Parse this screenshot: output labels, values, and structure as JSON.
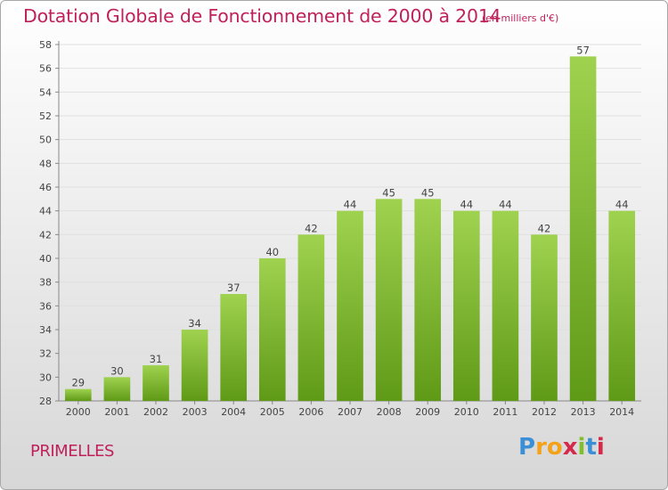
{
  "chart_data": {
    "type": "bar",
    "title": "Dotation Globale de Fonctionnement de 2000 à 2014",
    "unit_note": "(en milliers d'€)",
    "categories": [
      "2000",
      "2001",
      "2002",
      "2003",
      "2004",
      "2005",
      "2006",
      "2007",
      "2008",
      "2009",
      "2010",
      "2011",
      "2012",
      "2013",
      "2014"
    ],
    "values": [
      29,
      30,
      31,
      34,
      37,
      40,
      42,
      44,
      45,
      45,
      44,
      44,
      42,
      57,
      44
    ],
    "ylim": [
      28,
      58
    ],
    "yticks": [
      "28",
      "30",
      "32",
      "34",
      "36",
      "38",
      "40",
      "42",
      "44",
      "46",
      "48",
      "50",
      "52",
      "54",
      "56",
      "58"
    ],
    "xlabel": "",
    "ylabel": "",
    "grid": true
  },
  "commune": "PRIMELLES",
  "logo": {
    "letters": [
      "P",
      "r",
      "o",
      "x",
      "i",
      "t",
      "i"
    ]
  },
  "colors": {
    "title": "#c0215a",
    "bar_top": "#9fd24f",
    "bar_bottom": "#5f9a17",
    "logo": [
      "#3b8fd6",
      "#f5a21b",
      "#f5a21b",
      "#d6284a",
      "#7fbf2a",
      "#3b8fd6",
      "#d6284a"
    ]
  }
}
